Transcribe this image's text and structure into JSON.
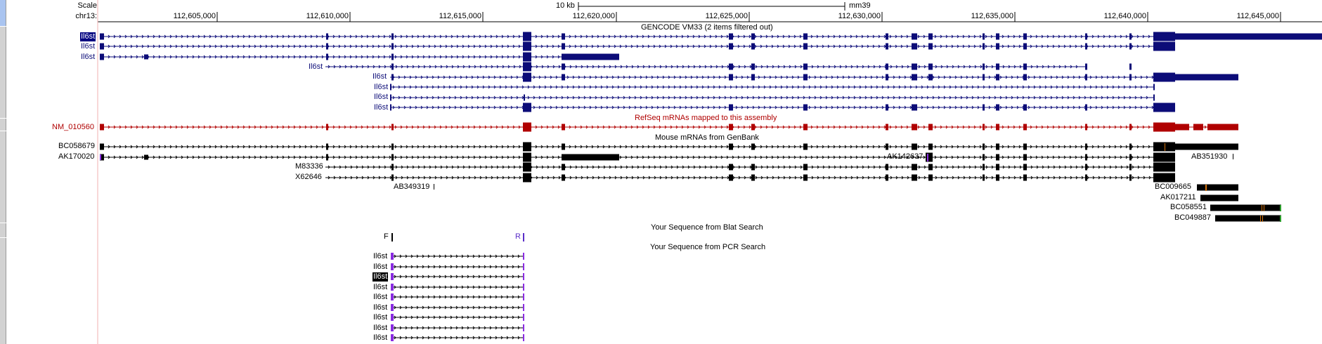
{
  "ruler": {
    "scale_label": "Scale",
    "chrom_label": "chr13:",
    "scale_bar_text": "10 kb",
    "assembly": "mm39",
    "ticks": [
      "112,605,000",
      "112,610,000",
      "112,615,000",
      "112,620,000",
      "112,625,000",
      "112,630,000",
      "112,635,000",
      "112,640,000",
      "112,645,000"
    ]
  },
  "tracks": {
    "gencode": {
      "title": "GENCODE VM33 (2 items filtered out)",
      "color": "#0c0c78",
      "labels": [
        "Il6st",
        "Il6st",
        "Il6st",
        "Il6st",
        "Il6st",
        "Il6st",
        "Il6st",
        "Il6st"
      ]
    },
    "refseq": {
      "title": "RefSeq mRNAs mapped to this assembly",
      "color": "#b00000",
      "label": "NM_010560"
    },
    "mrna": {
      "title": "Mouse mRNAs from GenBank",
      "labels": [
        "BC058679",
        "AK170020",
        "M83336",
        "X62646",
        "AB349319",
        "AK142637",
        "AB351930",
        "BC009665",
        "AK017211",
        "BC058551",
        "BC049887"
      ]
    },
    "blat": {
      "title": "Your Sequence from Blat Search"
    },
    "pcr": {
      "title": "Your Sequence from PCR Search",
      "primer_f": "F",
      "primer_r": "R",
      "labels": [
        "Il6st",
        "Il6st",
        "Il6st",
        "Il6st",
        "Il6st",
        "Il6st",
        "Il6st",
        "Il6st",
        "Il6st"
      ]
    }
  },
  "colors": {
    "gencode": "#0c0c78",
    "refseq": "#b00000",
    "mrna": "#000000",
    "pcr_purple": "#8a2be2",
    "sidebar": "#d2d2d2"
  }
}
